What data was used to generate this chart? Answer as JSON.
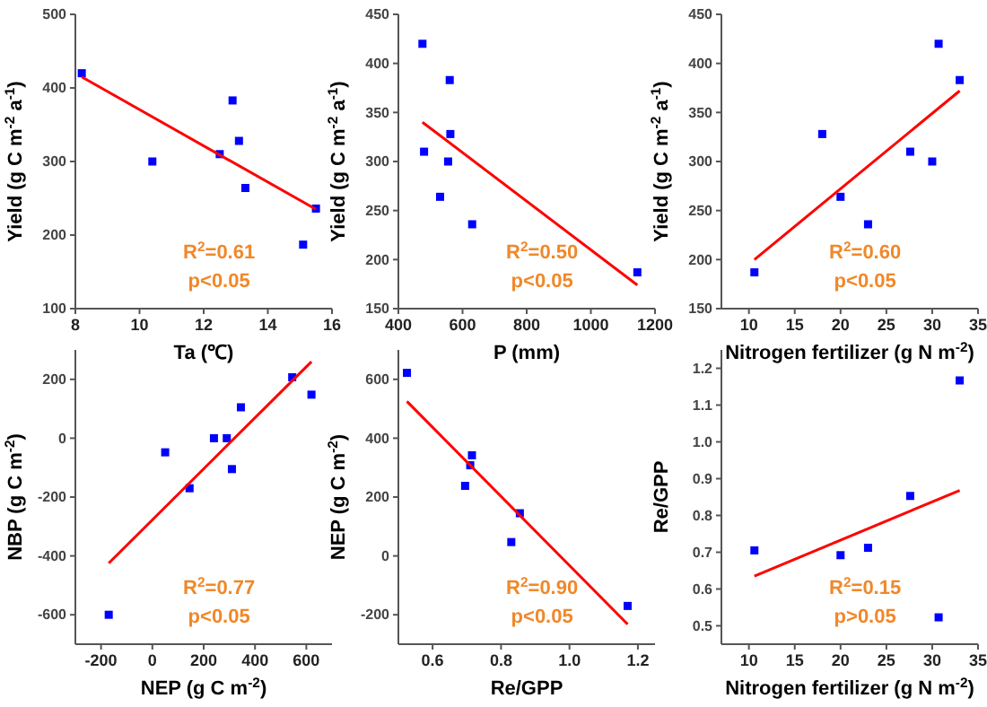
{
  "chart_data": [
    {
      "type": "scatter",
      "xlabel": "Ta (℃)",
      "ylabel": "Yield (g C m$^{-2}$ a$^{-1}$)",
      "xlim": [
        8,
        16
      ],
      "xticks": [
        8,
        10,
        12,
        14,
        16
      ],
      "ylim": [
        100,
        500
      ],
      "yticks": [
        100,
        200,
        300,
        400,
        500
      ],
      "annotations": [
        "R$^{2}$=0.61",
        "p<0.05"
      ],
      "series": [
        {
          "color": "#0000ff",
          "marker": "square",
          "x": [
            8.2,
            10.4,
            12.5,
            12.9,
            13.1,
            13.3,
            15.1,
            15.5
          ],
          "values": [
            420,
            300,
            310,
            383,
            328,
            264,
            187,
            236
          ]
        },
        {
          "type": "line",
          "color": "#ff0000",
          "x": [
            8.2,
            15.5
          ],
          "values": [
            415,
            235
          ]
        }
      ]
    },
    {
      "type": "scatter",
      "xlabel": "P (mm)",
      "ylabel": "Yield (g C m$^{-2}$ a$^{-1}$)",
      "xlim": [
        400,
        1200
      ],
      "xticks": [
        400,
        600,
        800,
        1000,
        1200
      ],
      "ylim": [
        150,
        450
      ],
      "yticks": [
        150,
        200,
        250,
        300,
        350,
        400,
        450
      ],
      "annotations": [
        "R$^{2}$=0.50",
        "p<0.05"
      ],
      "series": [
        {
          "color": "#0000ff",
          "marker": "square",
          "x": [
            475,
            480,
            530,
            555,
            560,
            562,
            630,
            1145
          ],
          "values": [
            420,
            310,
            264,
            300,
            383,
            328,
            236,
            187
          ]
        },
        {
          "type": "line",
          "color": "#ff0000",
          "x": [
            475,
            1145
          ],
          "values": [
            340,
            174
          ]
        }
      ]
    },
    {
      "type": "scatter",
      "xlabel": "Nitrogen fertilizer (g N m$^{-2}$)",
      "ylabel": "Yield (g C m$^{-2}$ a$^{-1}$)",
      "xlim": [
        7,
        35
      ],
      "xticks": [
        10,
        15,
        20,
        25,
        30,
        35
      ],
      "ylim": [
        150,
        450
      ],
      "yticks": [
        150,
        200,
        250,
        300,
        350,
        400,
        450
      ],
      "annotations": [
        "R$^{2}$=0.60",
        "p<0.05"
      ],
      "series": [
        {
          "color": "#0000ff",
          "marker": "square",
          "x": [
            10.6,
            18,
            20,
            23,
            27.6,
            30,
            30.7,
            33
          ],
          "values": [
            187,
            328,
            264,
            236,
            310,
            300,
            420,
            383
          ]
        },
        {
          "type": "line",
          "color": "#ff0000",
          "x": [
            10.6,
            33
          ],
          "values": [
            200,
            372
          ]
        }
      ]
    },
    {
      "type": "scatter",
      "xlabel": "NEP (g C m$^{-2}$)",
      "ylabel": "NBP (g C m$^{-2}$)",
      "xlim": [
        -300,
        700
      ],
      "xticks": [
        -200,
        0,
        200,
        400,
        600
      ],
      "ylim": [
        -700,
        300
      ],
      "yticks": [
        -600,
        -400,
        -200,
        0,
        200
      ],
      "annotations": [
        "R$^{2}$=0.77",
        "p<0.05"
      ],
      "series": [
        {
          "color": "#0000ff",
          "marker": "square",
          "x": [
            -170,
            50,
            145,
            240,
            290,
            310,
            345,
            545,
            620
          ],
          "values": [
            -600,
            -48,
            -170,
            0,
            0,
            -105,
            105,
            207,
            148
          ]
        },
        {
          "type": "line",
          "color": "#ff0000",
          "x": [
            -170,
            620
          ],
          "values": [
            -425,
            260
          ]
        }
      ]
    },
    {
      "type": "scatter",
      "xlabel": "Re/GPP",
      "ylabel": "NEP (g C m$^{-2}$)",
      "xlim": [
        0.5,
        1.25
      ],
      "xticks": [
        0.6,
        0.8,
        {
          "value": 1.0,
          "label": "1.0"
        },
        1.2
      ],
      "ylim": [
        -300,
        700
      ],
      "yticks": [
        -200,
        0,
        200,
        400,
        600
      ],
      "annotations": [
        "R$^{2}$=0.90",
        "p<0.05"
      ],
      "series": [
        {
          "color": "#0000ff",
          "marker": "square",
          "x": [
            0.525,
            0.695,
            0.71,
            0.715,
            0.83,
            0.855,
            1.17
          ],
          "values": [
            622,
            238,
            308,
            342,
            47,
            145,
            -170
          ]
        },
        {
          "type": "line",
          "color": "#ff0000",
          "x": [
            0.525,
            1.17
          ],
          "values": [
            525,
            -232
          ]
        }
      ]
    },
    {
      "type": "scatter",
      "xlabel": "Nitrogen fertilizer (g N m$^{-2}$)",
      "ylabel": "Re/GPP",
      "xlim": [
        7,
        35
      ],
      "xticks": [
        10,
        15,
        20,
        25,
        30,
        35
      ],
      "ylim": [
        0.45,
        1.25
      ],
      "yticks": [
        0.5,
        0.6,
        0.7,
        0.8,
        0.9,
        {
          "value": 1.0,
          "label": "1.0"
        },
        1.1,
        1.2
      ],
      "annotations": [
        "R$^{2}$=0.15",
        "p>0.05"
      ],
      "series": [
        {
          "color": "#0000ff",
          "marker": "square",
          "x": [
            10.6,
            20,
            23,
            27.6,
            30.7,
            33
          ],
          "values": [
            0.705,
            0.692,
            0.712,
            0.853,
            0.523,
            1.167
          ]
        },
        {
          "type": "line",
          "color": "#ff0000",
          "x": [
            10.6,
            33
          ],
          "values": [
            0.635,
            0.868
          ]
        }
      ]
    }
  ]
}
